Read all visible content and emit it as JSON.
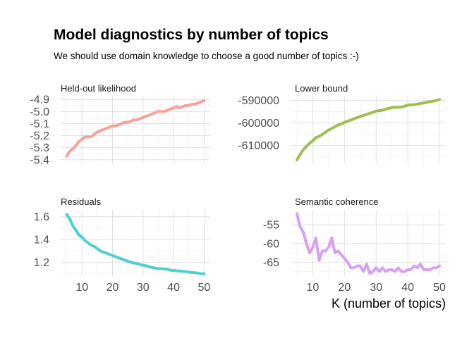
{
  "title": "Model diagnostics by number of topics",
  "subtitle": "We should use domain knowledge to choose a good number of topics :-)",
  "xlabel": "K (number of topics)",
  "chart_data": [
    {
      "type": "line",
      "title": "Held-out likelihood",
      "color": "#F8A19A",
      "x": [
        5,
        6,
        7,
        8,
        9,
        10,
        11,
        12,
        13,
        14,
        15,
        16,
        17,
        18,
        19,
        20,
        21,
        22,
        23,
        24,
        25,
        26,
        27,
        28,
        29,
        30,
        31,
        32,
        33,
        34,
        35,
        36,
        37,
        38,
        39,
        40,
        41,
        42,
        43,
        44,
        45,
        46,
        47,
        48,
        49,
        50
      ],
      "values": [
        -5.37,
        -5.33,
        -5.31,
        -5.28,
        -5.25,
        -5.23,
        -5.21,
        -5.21,
        -5.21,
        -5.19,
        -5.17,
        -5.16,
        -5.15,
        -5.14,
        -5.13,
        -5.12,
        -5.12,
        -5.11,
        -5.1,
        -5.09,
        -5.09,
        -5.08,
        -5.07,
        -5.07,
        -5.06,
        -5.05,
        -5.04,
        -5.03,
        -5.02,
        -5.01,
        -5.0,
        -5.0,
        -5.0,
        -4.99,
        -4.98,
        -4.97,
        -4.96,
        -4.97,
        -4.96,
        -4.95,
        -4.95,
        -4.94,
        -4.94,
        -4.93,
        -4.92,
        -4.91
      ],
      "ylim": [
        -5.43,
        -4.87
      ],
      "yticks": [
        -5.4,
        -5.3,
        -5.2,
        -5.1,
        -5.0,
        -4.9
      ],
      "ytick_labels": [
        "-5.4",
        "-5.3",
        "-5.2",
        "-5.1",
        "-5.0",
        "-4.9"
      ],
      "xticks": [
        10,
        20,
        30,
        40,
        50
      ],
      "xtick_labels": []
    },
    {
      "type": "line",
      "title": "Lower bound",
      "color": "#A0BE4E",
      "x": [
        5,
        6,
        7,
        8,
        9,
        10,
        11,
        12,
        13,
        14,
        15,
        16,
        17,
        18,
        19,
        20,
        21,
        22,
        23,
        24,
        25,
        26,
        27,
        28,
        29,
        30,
        31,
        32,
        33,
        34,
        35,
        36,
        37,
        38,
        39,
        40,
        41,
        42,
        43,
        44,
        45,
        46,
        47,
        48,
        49,
        50
      ],
      "values": [
        -616500,
        -614000,
        -612000,
        -610500,
        -609000,
        -608000,
        -606500,
        -606000,
        -605200,
        -604200,
        -603200,
        -602500,
        -601700,
        -601000,
        -600500,
        -599800,
        -599300,
        -598800,
        -598200,
        -597700,
        -597200,
        -596700,
        -596200,
        -595800,
        -595300,
        -594800,
        -594600,
        -594400,
        -594000,
        -593600,
        -593200,
        -593100,
        -593100,
        -593000,
        -592600,
        -592200,
        -592000,
        -592000,
        -591700,
        -591400,
        -591200,
        -590900,
        -590600,
        -590400,
        -590100,
        -589700
      ],
      "ylim": [
        -618000,
        -588000
      ],
      "yticks": [
        -610000,
        -600000,
        -590000
      ],
      "ytick_labels": [
        "-610000",
        "-600000",
        "-590000"
      ],
      "xticks": [
        10,
        20,
        30,
        40,
        50
      ],
      "xtick_labels": []
    },
    {
      "type": "line",
      "title": "Residuals",
      "color": "#4FCFD0",
      "x": [
        5,
        6,
        7,
        8,
        9,
        10,
        11,
        12,
        13,
        14,
        15,
        16,
        17,
        18,
        19,
        20,
        21,
        22,
        23,
        24,
        25,
        26,
        27,
        28,
        29,
        30,
        31,
        32,
        33,
        34,
        35,
        36,
        37,
        38,
        39,
        40,
        41,
        42,
        43,
        44,
        45,
        46,
        47,
        48,
        49,
        50
      ],
      "values": [
        1.62,
        1.58,
        1.52,
        1.48,
        1.44,
        1.42,
        1.39,
        1.37,
        1.35,
        1.34,
        1.32,
        1.3,
        1.29,
        1.28,
        1.27,
        1.26,
        1.25,
        1.24,
        1.23,
        1.22,
        1.21,
        1.2,
        1.195,
        1.19,
        1.18,
        1.175,
        1.17,
        1.16,
        1.155,
        1.15,
        1.145,
        1.145,
        1.14,
        1.14,
        1.13,
        1.13,
        1.125,
        1.125,
        1.12,
        1.12,
        1.115,
        1.11,
        1.11,
        1.105,
        1.1,
        1.1
      ],
      "ylim": [
        1.08,
        1.66
      ],
      "yticks": [
        1.2,
        1.4,
        1.6
      ],
      "ytick_labels": [
        "1.2",
        "1.4",
        "1.6"
      ],
      "xticks": [
        10,
        20,
        30,
        40,
        50
      ],
      "xtick_labels": [
        "10",
        "20",
        "30",
        "40",
        "50"
      ]
    },
    {
      "type": "line",
      "title": "Semantic coherence",
      "color": "#D7A0F0",
      "x": [
        5,
        6,
        7,
        8,
        9,
        10,
        11,
        12,
        13,
        14,
        15,
        16,
        17,
        18,
        19,
        20,
        21,
        22,
        23,
        24,
        25,
        26,
        27,
        28,
        29,
        30,
        31,
        32,
        33,
        34,
        35,
        36,
        37,
        38,
        39,
        40,
        41,
        42,
        43,
        44,
        45,
        46,
        47,
        48,
        49,
        50
      ],
      "values": [
        -52,
        -55.5,
        -57,
        -60,
        -62.5,
        -61,
        -58.5,
        -64.5,
        -62,
        -62,
        -61,
        -58.5,
        -62.5,
        -62,
        -63,
        -64,
        -65,
        -66.5,
        -66.5,
        -66,
        -66,
        -67.5,
        -65.5,
        -68,
        -67.5,
        -66.5,
        -67.5,
        -66.5,
        -67.5,
        -67,
        -67,
        -67.5,
        -66.5,
        -67.5,
        -67.5,
        -67,
        -67,
        -66,
        -66.5,
        -65.5,
        -67,
        -67,
        -67,
        -66.5,
        -66.5,
        -66
      ],
      "ylim": [
        -68.7,
        -51
      ],
      "yticks": [
        -65,
        -60,
        -55
      ],
      "ytick_labels": [
        "-65",
        "-60",
        "-55"
      ],
      "xticks": [
        10,
        20,
        30,
        40,
        50
      ],
      "xtick_labels": [
        "10",
        "20",
        "30",
        "40",
        "50"
      ]
    }
  ]
}
